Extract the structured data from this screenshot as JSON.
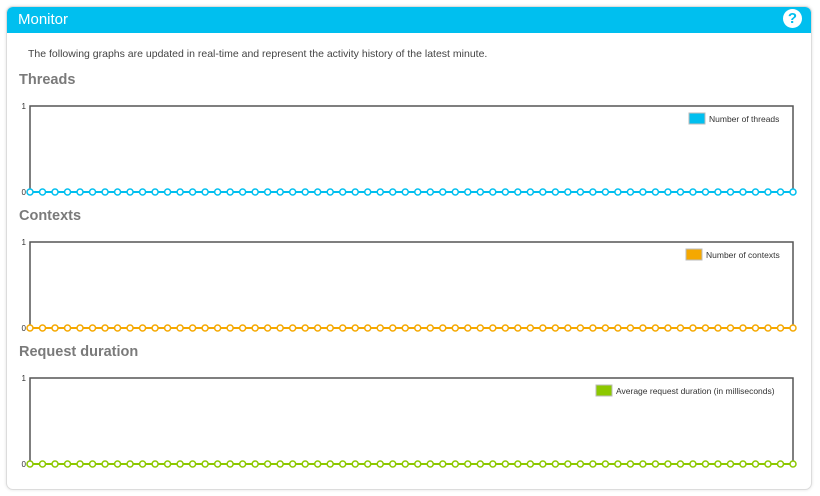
{
  "header": {
    "title": "Monitor"
  },
  "description": "The following graphs are updated in real-time and represent the activity history of the latest minute.",
  "icons": {
    "help": "help-icon"
  },
  "colors": {
    "header_bg": "#00bfef",
    "threads": "#00bfef",
    "contexts": "#f5a800",
    "request_duration": "#8cc800"
  },
  "chart_data": [
    {
      "type": "line",
      "title": "Threads",
      "ylim": [
        0,
        1
      ],
      "y_ticks": [
        "1",
        "0"
      ],
      "legend_position": "top-right",
      "series": [
        {
          "name": "Number of threads",
          "values": [
            0,
            0,
            0,
            0,
            0,
            0,
            0,
            0,
            0,
            0,
            0,
            0,
            0,
            0,
            0,
            0,
            0,
            0,
            0,
            0,
            0,
            0,
            0,
            0,
            0,
            0,
            0,
            0,
            0,
            0,
            0,
            0,
            0,
            0,
            0,
            0,
            0,
            0,
            0,
            0,
            0,
            0,
            0,
            0,
            0,
            0,
            0,
            0,
            0,
            0,
            0,
            0,
            0,
            0,
            0,
            0,
            0,
            0,
            0,
            0,
            0,
            0
          ]
        }
      ]
    },
    {
      "type": "line",
      "title": "Contexts",
      "ylim": [
        0,
        1
      ],
      "y_ticks": [
        "1",
        "0"
      ],
      "legend_position": "top-right",
      "series": [
        {
          "name": "Number of contexts",
          "values": [
            0,
            0,
            0,
            0,
            0,
            0,
            0,
            0,
            0,
            0,
            0,
            0,
            0,
            0,
            0,
            0,
            0,
            0,
            0,
            0,
            0,
            0,
            0,
            0,
            0,
            0,
            0,
            0,
            0,
            0,
            0,
            0,
            0,
            0,
            0,
            0,
            0,
            0,
            0,
            0,
            0,
            0,
            0,
            0,
            0,
            0,
            0,
            0,
            0,
            0,
            0,
            0,
            0,
            0,
            0,
            0,
            0,
            0,
            0,
            0,
            0,
            0
          ]
        }
      ]
    },
    {
      "type": "line",
      "title": "Request duration",
      "ylim": [
        0,
        1
      ],
      "y_ticks": [
        "1",
        "0"
      ],
      "legend_position": "top-right",
      "series": [
        {
          "name": "Average request duration (in milliseconds)",
          "values": [
            0,
            0,
            0,
            0,
            0,
            0,
            0,
            0,
            0,
            0,
            0,
            0,
            0,
            0,
            0,
            0,
            0,
            0,
            0,
            0,
            0,
            0,
            0,
            0,
            0,
            0,
            0,
            0,
            0,
            0,
            0,
            0,
            0,
            0,
            0,
            0,
            0,
            0,
            0,
            0,
            0,
            0,
            0,
            0,
            0,
            0,
            0,
            0,
            0,
            0,
            0,
            0,
            0,
            0,
            0,
            0,
            0,
            0,
            0,
            0,
            0,
            0
          ]
        }
      ]
    }
  ]
}
